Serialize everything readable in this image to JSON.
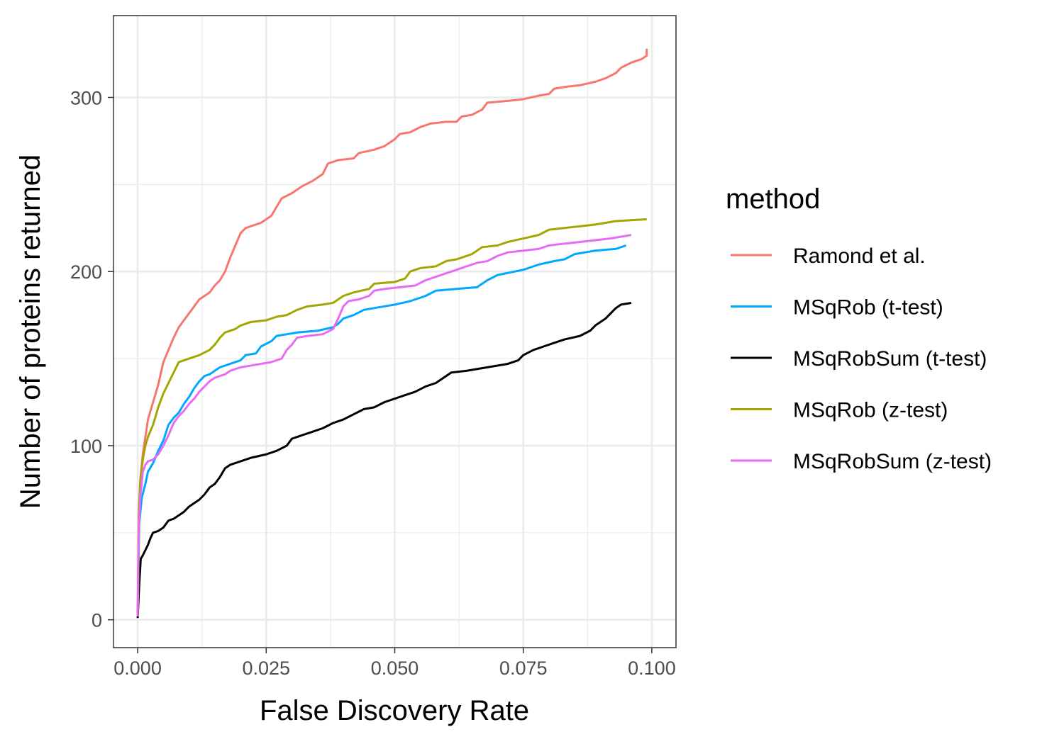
{
  "chart_data": {
    "type": "line",
    "xlabel": "False Discovery Rate",
    "ylabel": "Number of proteins returned",
    "xlim": [
      -0.0047,
      0.1047
    ],
    "ylim": [
      -16,
      347
    ],
    "x_ticks": [
      0.0,
      0.025,
      0.05,
      0.075,
      0.1
    ],
    "x_tick_labels": [
      "0.000",
      "0.025",
      "0.050",
      "0.075",
      "0.100"
    ],
    "y_ticks": [
      0,
      100,
      200,
      300
    ],
    "y_tick_labels": [
      "0",
      "100",
      "200",
      "300"
    ],
    "grid": true,
    "legend": {
      "title": "method",
      "position": "right"
    },
    "series": [
      {
        "name": "Ramond et al.",
        "color": "#F8766D",
        "points": [
          [
            0,
            2
          ],
          [
            0.0002,
            60
          ],
          [
            0.0005,
            80
          ],
          [
            0.001,
            95
          ],
          [
            0.0015,
            105
          ],
          [
            0.002,
            115
          ],
          [
            0.003,
            125
          ],
          [
            0.004,
            135
          ],
          [
            0.005,
            148
          ],
          [
            0.006,
            155
          ],
          [
            0.007,
            162
          ],
          [
            0.008,
            168
          ],
          [
            0.009,
            172
          ],
          [
            0.01,
            176
          ],
          [
            0.011,
            180
          ],
          [
            0.012,
            184
          ],
          [
            0.013,
            186
          ],
          [
            0.014,
            188
          ],
          [
            0.015,
            192
          ],
          [
            0.016,
            195
          ],
          [
            0.017,
            200
          ],
          [
            0.018,
            208
          ],
          [
            0.019,
            215
          ],
          [
            0.02,
            222
          ],
          [
            0.021,
            225
          ],
          [
            0.022,
            226
          ],
          [
            0.024,
            228
          ],
          [
            0.026,
            232
          ],
          [
            0.027,
            237
          ],
          [
            0.028,
            242
          ],
          [
            0.03,
            245
          ],
          [
            0.032,
            249
          ],
          [
            0.034,
            252
          ],
          [
            0.036,
            256
          ],
          [
            0.037,
            262
          ],
          [
            0.039,
            264
          ],
          [
            0.042,
            265
          ],
          [
            0.043,
            268
          ],
          [
            0.046,
            270
          ],
          [
            0.048,
            272
          ],
          [
            0.05,
            276
          ],
          [
            0.051,
            279
          ],
          [
            0.053,
            280
          ],
          [
            0.055,
            283
          ],
          [
            0.057,
            285
          ],
          [
            0.06,
            286
          ],
          [
            0.062,
            286
          ],
          [
            0.063,
            289
          ],
          [
            0.065,
            290
          ],
          [
            0.067,
            293
          ],
          [
            0.068,
            297
          ],
          [
            0.072,
            298
          ],
          [
            0.075,
            299
          ],
          [
            0.078,
            301
          ],
          [
            0.08,
            302
          ],
          [
            0.081,
            305
          ],
          [
            0.083,
            306
          ],
          [
            0.086,
            307
          ],
          [
            0.089,
            309
          ],
          [
            0.091,
            311
          ],
          [
            0.093,
            314
          ],
          [
            0.094,
            317
          ],
          [
            0.096,
            320
          ],
          [
            0.098,
            322
          ],
          [
            0.099,
            324
          ],
          [
            0.099,
            328
          ]
        ]
      },
      {
        "name": "MSqRob (t-test)",
        "color": "#00A9FF",
        "points": [
          [
            0,
            2
          ],
          [
            0.0003,
            55
          ],
          [
            0.0008,
            70
          ],
          [
            0.0015,
            78
          ],
          [
            0.002,
            85
          ],
          [
            0.003,
            90
          ],
          [
            0.004,
            97
          ],
          [
            0.005,
            103
          ],
          [
            0.006,
            112
          ],
          [
            0.007,
            116
          ],
          [
            0.008,
            119
          ],
          [
            0.009,
            124
          ],
          [
            0.01,
            128
          ],
          [
            0.011,
            133
          ],
          [
            0.012,
            137
          ],
          [
            0.013,
            140
          ],
          [
            0.014,
            141
          ],
          [
            0.015,
            143
          ],
          [
            0.016,
            145
          ],
          [
            0.018,
            147
          ],
          [
            0.02,
            149
          ],
          [
            0.021,
            152
          ],
          [
            0.023,
            153
          ],
          [
            0.024,
            157
          ],
          [
            0.026,
            160
          ],
          [
            0.027,
            163
          ],
          [
            0.029,
            164
          ],
          [
            0.031,
            165
          ],
          [
            0.035,
            166
          ],
          [
            0.038,
            168
          ],
          [
            0.039,
            170
          ],
          [
            0.04,
            173
          ],
          [
            0.042,
            175
          ],
          [
            0.044,
            178
          ],
          [
            0.046,
            179
          ],
          [
            0.05,
            181
          ],
          [
            0.053,
            183
          ],
          [
            0.056,
            186
          ],
          [
            0.058,
            189
          ],
          [
            0.062,
            190
          ],
          [
            0.066,
            191
          ],
          [
            0.068,
            195
          ],
          [
            0.07,
            198
          ],
          [
            0.075,
            201
          ],
          [
            0.078,
            204
          ],
          [
            0.081,
            206
          ],
          [
            0.083,
            207
          ],
          [
            0.085,
            210
          ],
          [
            0.087,
            211
          ],
          [
            0.089,
            212
          ],
          [
            0.093,
            213
          ],
          [
            0.095,
            215
          ]
        ]
      },
      {
        "name": "MSqRobSum (t-test)",
        "color": "#000000",
        "points": [
          [
            0,
            1
          ],
          [
            0.0003,
            20
          ],
          [
            0.0006,
            35
          ],
          [
            0.001,
            37
          ],
          [
            0.0015,
            40
          ],
          [
            0.002,
            43
          ],
          [
            0.0025,
            47
          ],
          [
            0.003,
            50
          ],
          [
            0.004,
            51
          ],
          [
            0.005,
            53
          ],
          [
            0.006,
            57
          ],
          [
            0.007,
            58
          ],
          [
            0.008,
            60
          ],
          [
            0.009,
            62
          ],
          [
            0.01,
            65
          ],
          [
            0.011,
            67
          ],
          [
            0.012,
            69
          ],
          [
            0.013,
            72
          ],
          [
            0.014,
            76
          ],
          [
            0.015,
            78
          ],
          [
            0.016,
            82
          ],
          [
            0.017,
            87
          ],
          [
            0.018,
            89
          ],
          [
            0.02,
            91
          ],
          [
            0.022,
            93
          ],
          [
            0.025,
            95
          ],
          [
            0.027,
            97
          ],
          [
            0.029,
            100
          ],
          [
            0.03,
            104
          ],
          [
            0.032,
            106
          ],
          [
            0.034,
            108
          ],
          [
            0.036,
            110
          ],
          [
            0.038,
            113
          ],
          [
            0.04,
            115
          ],
          [
            0.042,
            118
          ],
          [
            0.044,
            121
          ],
          [
            0.046,
            122
          ],
          [
            0.048,
            125
          ],
          [
            0.05,
            127
          ],
          [
            0.052,
            129
          ],
          [
            0.054,
            131
          ],
          [
            0.056,
            134
          ],
          [
            0.058,
            136
          ],
          [
            0.06,
            140
          ],
          [
            0.061,
            142
          ],
          [
            0.064,
            143
          ],
          [
            0.068,
            145
          ],
          [
            0.072,
            147
          ],
          [
            0.074,
            149
          ],
          [
            0.075,
            152
          ],
          [
            0.077,
            155
          ],
          [
            0.079,
            157
          ],
          [
            0.081,
            159
          ],
          [
            0.083,
            161
          ],
          [
            0.086,
            163
          ],
          [
            0.088,
            166
          ],
          [
            0.089,
            169
          ],
          [
            0.091,
            173
          ],
          [
            0.092,
            176
          ],
          [
            0.093,
            179
          ],
          [
            0.094,
            181
          ],
          [
            0.096,
            182
          ]
        ]
      },
      {
        "name": "MSqRob (z-test)",
        "color": "#A3A500",
        "points": [
          [
            0,
            2
          ],
          [
            0.0003,
            65
          ],
          [
            0.0006,
            82
          ],
          [
            0.001,
            92
          ],
          [
            0.0015,
            100
          ],
          [
            0.002,
            105
          ],
          [
            0.003,
            112
          ],
          [
            0.004,
            122
          ],
          [
            0.005,
            130
          ],
          [
            0.006,
            136
          ],
          [
            0.007,
            142
          ],
          [
            0.008,
            148
          ],
          [
            0.009,
            149
          ],
          [
            0.01,
            150
          ],
          [
            0.012,
            152
          ],
          [
            0.014,
            155
          ],
          [
            0.015,
            158
          ],
          [
            0.016,
            162
          ],
          [
            0.017,
            165
          ],
          [
            0.019,
            167
          ],
          [
            0.02,
            169
          ],
          [
            0.022,
            171
          ],
          [
            0.025,
            172
          ],
          [
            0.027,
            174
          ],
          [
            0.029,
            175
          ],
          [
            0.031,
            178
          ],
          [
            0.033,
            180
          ],
          [
            0.036,
            181
          ],
          [
            0.038,
            182
          ],
          [
            0.04,
            186
          ],
          [
            0.042,
            188
          ],
          [
            0.045,
            190
          ],
          [
            0.046,
            193
          ],
          [
            0.05,
            194
          ],
          [
            0.052,
            196
          ],
          [
            0.053,
            200
          ],
          [
            0.055,
            202
          ],
          [
            0.058,
            203
          ],
          [
            0.06,
            206
          ],
          [
            0.062,
            207
          ],
          [
            0.065,
            210
          ],
          [
            0.067,
            214
          ],
          [
            0.07,
            215
          ],
          [
            0.072,
            217
          ],
          [
            0.075,
            219
          ],
          [
            0.078,
            221
          ],
          [
            0.08,
            224
          ],
          [
            0.083,
            225
          ],
          [
            0.086,
            226
          ],
          [
            0.089,
            227
          ],
          [
            0.093,
            229
          ],
          [
            0.099,
            230
          ]
        ]
      },
      {
        "name": "MSqRobSum (z-test)",
        "color": "#E76BF3",
        "points": [
          [
            0,
            2
          ],
          [
            0.0002,
            50
          ],
          [
            0.0005,
            70
          ],
          [
            0.001,
            85
          ],
          [
            0.0015,
            89
          ],
          [
            0.002,
            91
          ],
          [
            0.003,
            92
          ],
          [
            0.004,
            95
          ],
          [
            0.005,
            100
          ],
          [
            0.006,
            106
          ],
          [
            0.007,
            113
          ],
          [
            0.008,
            117
          ],
          [
            0.009,
            120
          ],
          [
            0.01,
            124
          ],
          [
            0.011,
            127
          ],
          [
            0.012,
            131
          ],
          [
            0.013,
            134
          ],
          [
            0.014,
            137
          ],
          [
            0.015,
            139
          ],
          [
            0.017,
            141
          ],
          [
            0.018,
            143
          ],
          [
            0.02,
            145
          ],
          [
            0.022,
            146
          ],
          [
            0.024,
            147
          ],
          [
            0.026,
            148
          ],
          [
            0.028,
            150
          ],
          [
            0.029,
            155
          ],
          [
            0.03,
            158
          ],
          [
            0.031,
            162
          ],
          [
            0.033,
            163
          ],
          [
            0.036,
            164
          ],
          [
            0.038,
            167
          ],
          [
            0.039,
            173
          ],
          [
            0.04,
            180
          ],
          [
            0.041,
            183
          ],
          [
            0.043,
            184
          ],
          [
            0.045,
            186
          ],
          [
            0.046,
            189
          ],
          [
            0.048,
            190
          ],
          [
            0.051,
            191
          ],
          [
            0.054,
            192
          ],
          [
            0.056,
            195
          ],
          [
            0.058,
            197
          ],
          [
            0.06,
            199
          ],
          [
            0.062,
            201
          ],
          [
            0.064,
            203
          ],
          [
            0.066,
            205
          ],
          [
            0.068,
            206
          ],
          [
            0.07,
            209
          ],
          [
            0.072,
            211
          ],
          [
            0.075,
            212
          ],
          [
            0.078,
            213
          ],
          [
            0.08,
            215
          ],
          [
            0.083,
            216
          ],
          [
            0.086,
            217
          ],
          [
            0.089,
            218
          ],
          [
            0.092,
            219
          ],
          [
            0.096,
            221
          ]
        ]
      }
    ]
  }
}
